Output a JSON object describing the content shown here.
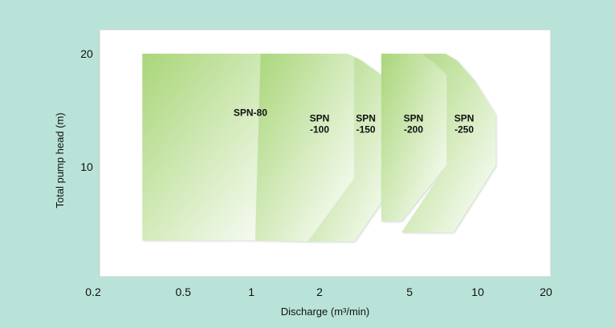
{
  "chart_data": {
    "type": "area",
    "title": "",
    "xlabel": "Discharge (m³/min)",
    "ylabel": "Total pump head (m)",
    "x_scale": "log",
    "xlim": [
      0.2,
      20
    ],
    "ylim": [
      1.5,
      23
    ],
    "x_ticks": [
      {
        "value": 0.2,
        "label": "0.2"
      },
      {
        "value": 0.5,
        "label": "0.5"
      },
      {
        "value": 1,
        "label": "1"
      },
      {
        "value": 2,
        "label": "2"
      },
      {
        "value": 5,
        "label": "5"
      },
      {
        "value": 10,
        "label": "10"
      },
      {
        "value": 20,
        "label": "20"
      }
    ],
    "y_ticks": [
      {
        "value": 10,
        "label": "10"
      },
      {
        "value": 20,
        "label": "20"
      }
    ],
    "grid": false,
    "series": [
      {
        "name": "SPN-80",
        "label_lines": [
          "SPN-80"
        ],
        "label_at": [
          0.99,
          14.5
        ],
        "polygon": [
          [
            0.33,
            20
          ],
          [
            1.1,
            20
          ],
          [
            1.25,
            19.3
          ],
          [
            1.43,
            17.4
          ],
          [
            1.43,
            10.1
          ],
          [
            1.04,
            3.5
          ],
          [
            0.33,
            3.5
          ]
        ]
      },
      {
        "name": "SPN-100",
        "label_lines": [
          "SPN",
          "-100"
        ],
        "label_at": [
          2.0,
          14
        ],
        "polygon": [
          [
            1.1,
            20
          ],
          [
            2.65,
            20
          ],
          [
            2.85,
            19.7
          ],
          [
            2.85,
            9.0
          ],
          [
            1.78,
            3.4
          ],
          [
            1.04,
            3.5
          ]
        ]
      },
      {
        "name": "SPN-150",
        "label_lines": [
          "SPN",
          "-150"
        ],
        "label_at": [
          3.2,
          14
        ],
        "polygon": [
          [
            2.65,
            20
          ],
          [
            3.0,
            19.5
          ],
          [
            3.6,
            18.4
          ],
          [
            4.45,
            16.8
          ],
          [
            4.45,
            9.0
          ],
          [
            2.85,
            3.4
          ],
          [
            1.78,
            3.4
          ],
          [
            2.85,
            9.0
          ],
          [
            2.85,
            19.7
          ]
        ]
      },
      {
        "name": "SPN-200",
        "label_lines": [
          "SPN",
          "-200"
        ],
        "label_at": [
          5.2,
          14
        ],
        "polygon": [
          [
            3.75,
            20
          ],
          [
            5.7,
            20
          ],
          [
            6.4,
            19.3
          ],
          [
            7.3,
            18.2
          ],
          [
            7.3,
            10.2
          ],
          [
            4.6,
            5.2
          ],
          [
            3.75,
            5.2
          ]
        ]
      },
      {
        "name": "SPN-250",
        "label_lines": [
          "SPN",
          "-250"
        ],
        "label_at": [
          8.7,
          14
        ],
        "polygon": [
          [
            5.7,
            20
          ],
          [
            7.2,
            20
          ],
          [
            8.1,
            19.4
          ],
          [
            9.7,
            17.6
          ],
          [
            12.0,
            14.6
          ],
          [
            12.0,
            10.1
          ],
          [
            7.8,
            4.2
          ],
          [
            4.6,
            4.2
          ],
          [
            7.3,
            10.2
          ],
          [
            7.3,
            18.2
          ],
          [
            6.4,
            19.3
          ]
        ]
      }
    ]
  }
}
